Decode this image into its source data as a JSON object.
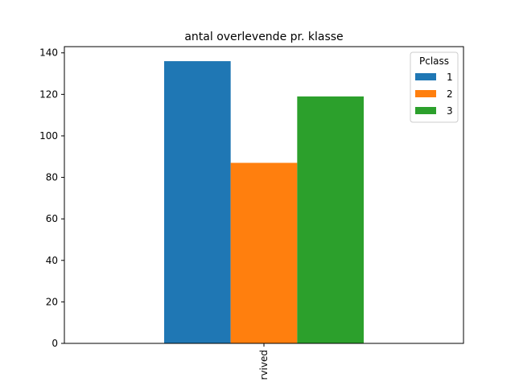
{
  "chart_data": {
    "type": "bar",
    "title": "antal overlevende pr. klasse",
    "categories": [
      "Survived"
    ],
    "category_tick_shown": "rvived",
    "series": [
      {
        "name": "1",
        "values": [
          136
        ],
        "color": "#1f77b4"
      },
      {
        "name": "2",
        "values": [
          87
        ],
        "color": "#ff7f0e"
      },
      {
        "name": "3",
        "values": [
          119
        ],
        "color": "#2ca02c"
      }
    ],
    "xlabel": "",
    "ylabel": "",
    "ylim": [
      0,
      143
    ],
    "yticks": [
      0,
      20,
      40,
      60,
      80,
      100,
      120,
      140
    ],
    "legend": {
      "title": "Pclass",
      "placement": "top-right"
    },
    "grid": false
  }
}
